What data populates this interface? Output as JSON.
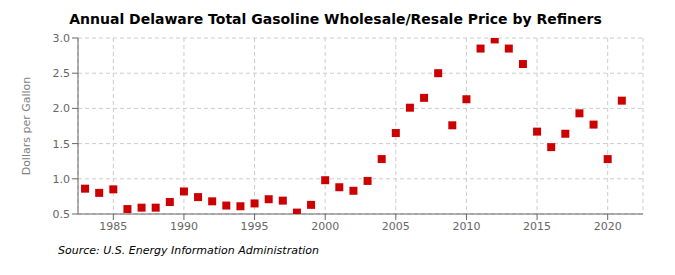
{
  "chart_data": {
    "type": "scatter",
    "title": "Annual Delaware Total Gasoline Wholesale/Resale Price by Refiners",
    "ylabel": "Dollars per Gallon",
    "annotation": "Source: U.S. Energy Information Administration",
    "color": "#cc0000",
    "marker": "square",
    "grid": true,
    "x": [
      1983,
      1984,
      1985,
      1986,
      1987,
      1988,
      1989,
      1990,
      1991,
      1992,
      1993,
      1994,
      1995,
      1996,
      1997,
      1998,
      1999,
      2000,
      2001,
      2002,
      2003,
      2004,
      2005,
      2006,
      2007,
      2008,
      2009,
      2010,
      2011,
      2012,
      2013,
      2014,
      2015,
      2016,
      2017,
      2018,
      2019,
      2020,
      2021
    ],
    "values": [
      0.86,
      0.8,
      0.85,
      0.57,
      0.59,
      0.59,
      0.67,
      0.82,
      0.74,
      0.68,
      0.62,
      0.61,
      0.65,
      0.71,
      0.69,
      0.52,
      0.63,
      0.98,
      0.88,
      0.83,
      0.97,
      1.28,
      1.65,
      2.01,
      2.15,
      2.5,
      1.76,
      2.13,
      2.85,
      2.98,
      2.85,
      2.63,
      1.67,
      1.45,
      1.64,
      1.93,
      1.77,
      1.28,
      2.11
    ],
    "xlim": [
      1982.5,
      2022.5
    ],
    "ylim": [
      0.5,
      3.0
    ],
    "xticks": [
      1985,
      1990,
      1995,
      2000,
      2005,
      2010,
      2015,
      2020
    ],
    "yticks": [
      0.5,
      {
        "value": 1.0,
        "label": "1.0"
      },
      1.5,
      {
        "value": 2.0,
        "label": "2.0"
      },
      2.5,
      {
        "value": 3.0,
        "label": "3.0"
      }
    ]
  }
}
